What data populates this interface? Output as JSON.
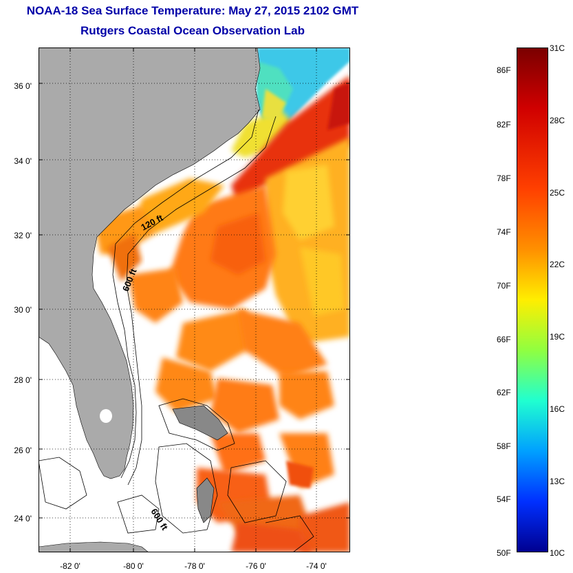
{
  "title": "NOAA-18 Sea Surface Temperature:  May 27, 2015 2102 GMT",
  "subtitle": "Rutgers Coastal Ocean Observation Lab",
  "map": {
    "lat_range": [
      23.0,
      37.0
    ],
    "lon_range": [
      -83.0,
      -73.0
    ],
    "lat_ticks": [
      "36 0'",
      "34 0'",
      "32 0'",
      "30 0'",
      "28 0'",
      "26 0'",
      "24 0'"
    ],
    "lon_ticks": [
      "-82 0'",
      "-80 0'",
      "-78 0'",
      "-76 0'",
      "-74 0'"
    ],
    "contour_labels": [
      "120 ft",
      "600 ft",
      "600 ft"
    ],
    "land_color": "#aaaaaa",
    "cloud_color": "#ffffff",
    "grid": "dotted"
  },
  "colorbar": {
    "fahrenheit": [
      "86F",
      "82F",
      "78F",
      "74F",
      "70F",
      "66F",
      "62F",
      "58F",
      "54F",
      "50F"
    ],
    "celsius": [
      "31C",
      "28C",
      "25C",
      "22C",
      "19C",
      "16C",
      "13C",
      "10C"
    ],
    "colors_top_to_bottom": [
      "#7a0000",
      "#d00000",
      "#ff4000",
      "#ff9000",
      "#ffee00",
      "#90ff40",
      "#20ffd0",
      "#00a0ff",
      "#0030ff",
      "#000090"
    ]
  }
}
